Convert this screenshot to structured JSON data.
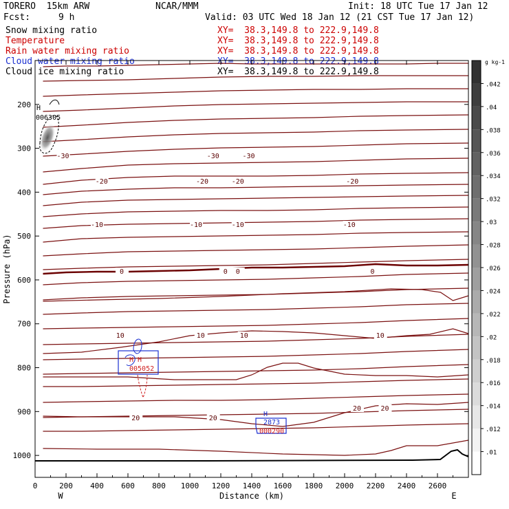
{
  "header": {
    "model": "TORERO  15km ARW",
    "center": "NCAR/MMM",
    "init": "Init: 18 UTC Tue 17 Jan 12",
    "fcst_label": "Fcst:",
    "fcst_value": "9 h",
    "valid": "Valid: 03 UTC Wed 18 Jan 12 (21 CST Tue 17 Jan 12)"
  },
  "fields": [
    {
      "name": "Snow mixing ratio",
      "xy": "XY=  38.3,149.8 to 222.9,149.8",
      "color": "#000000"
    },
    {
      "name": "Temperature",
      "xy": "XY=  38.3,149.8 to 222.9,149.8",
      "color": "#cc0000"
    },
    {
      "name": "Rain water mixing ratio",
      "xy": "XY=  38.3,149.8 to 222.9,149.8",
      "color": "#cc0000"
    },
    {
      "name": "Cloud water mixing ratio",
      "xy": "XY=  38.3,149.8 to 222.9,149.8",
      "color": "#0000cc"
    },
    {
      "name": "Cloud ice mixing ratio",
      "xy": "XY=  38.3,149.8 to 222.9,149.8",
      "color": "#000000"
    }
  ],
  "colors": {
    "isotherm": "#7a1010",
    "zero_isotherm": "#6b0000",
    "cloud_water": "#1a2fd0",
    "rain": "#d02020",
    "terrain": "#000000"
  },
  "chart_data": {
    "type": "cross-section contour",
    "xlabel": "Distance (km)",
    "ylabel": "Pressure (hPa)",
    "xlim": [
      0,
      2800
    ],
    "ylim": [
      1050,
      100
    ],
    "xticks": [
      0,
      200,
      400,
      600,
      800,
      1000,
      1200,
      1400,
      1600,
      1800,
      2000,
      2200,
      2400,
      2600
    ],
    "yticks": [
      200,
      300,
      400,
      500,
      600,
      700,
      800,
      900,
      1000
    ],
    "end_labels": {
      "left": "W",
      "right": "E"
    },
    "temperature_contours": [
      {
        "temp": -30,
        "label_x": [
          180,
          1150,
          1380
        ]
      },
      {
        "temp": -20,
        "label_x": [
          430,
          1080,
          1310,
          2050
        ]
      },
      {
        "temp": -10,
        "label_x": [
          400,
          1040,
          1310,
          2030
        ]
      },
      {
        "temp": 0,
        "label_x": [
          560,
          1230,
          1310,
          2180
        ]
      },
      {
        "temp": 10,
        "label_x": [
          550,
          1070,
          1350,
          2230
        ]
      },
      {
        "temp": 20,
        "label_x": [
          650,
          1150,
          2080,
          2260
        ]
      }
    ],
    "labels_text": {
      "-30": "-30",
      "-20": "-20",
      "-10": "-10",
      "0": "0",
      "10": "10",
      "20": "20"
    },
    "maxima_labels": [
      {
        "text": "H",
        "x": 20,
        "p": 188
      },
      {
        "text": "006305",
        "x": 80,
        "p": 228
      },
      {
        "text": "H H",
        "x": 630,
        "p": 792
      },
      {
        "text": "005052",
        "x": 660,
        "p": 800
      },
      {
        "text": "H",
        "x": 1470,
        "p": 906
      },
      {
        "text": "2873",
        "x": 1500,
        "p": 917
      },
      {
        "text": "000290",
        "x": 1470,
        "p": 944
      }
    ],
    "colorbar": {
      "unit": "g kg-1",
      "ticks": [
        ".01",
        ".012",
        ".014",
        ".016",
        ".018",
        ".02",
        ".022",
        ".024",
        ".026",
        ".028",
        ".03",
        ".032",
        ".034",
        ".036",
        ".038",
        ".04",
        ".042"
      ]
    }
  }
}
